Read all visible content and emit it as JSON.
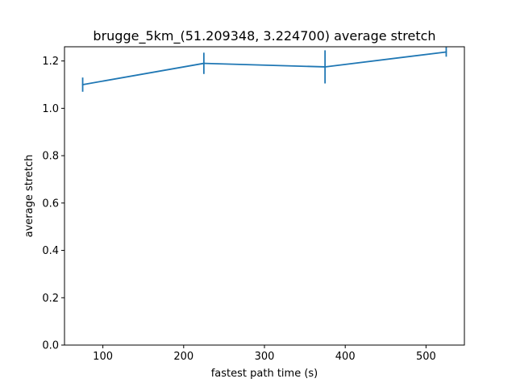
{
  "chart_data": {
    "type": "line",
    "title": "brugge_5km_(51.209348, 3.224700) average stretch",
    "xlabel": "fastest path time (s)",
    "ylabel": "average stretch",
    "xlim": [
      52.5,
      547.5
    ],
    "ylim": [
      0.0,
      1.26
    ],
    "xticks": [
      100,
      200,
      300,
      400,
      500
    ],
    "xtick_labels": [
      "100",
      "200",
      "300",
      "400",
      "500"
    ],
    "yticks": [
      0.0,
      0.2,
      0.4,
      0.6,
      0.8,
      1.0,
      1.2
    ],
    "ytick_labels": [
      "0.0",
      "0.2",
      "0.4",
      "0.6",
      "0.8",
      "1.0",
      "1.2"
    ],
    "grid": false,
    "series": [
      {
        "color": "#1f77b4",
        "x": [
          75,
          225,
          375,
          525
        ],
        "y": [
          1.1,
          1.19,
          1.175,
          1.238
        ],
        "error": [
          0.03,
          0.045,
          0.07,
          0.02
        ]
      }
    ]
  }
}
